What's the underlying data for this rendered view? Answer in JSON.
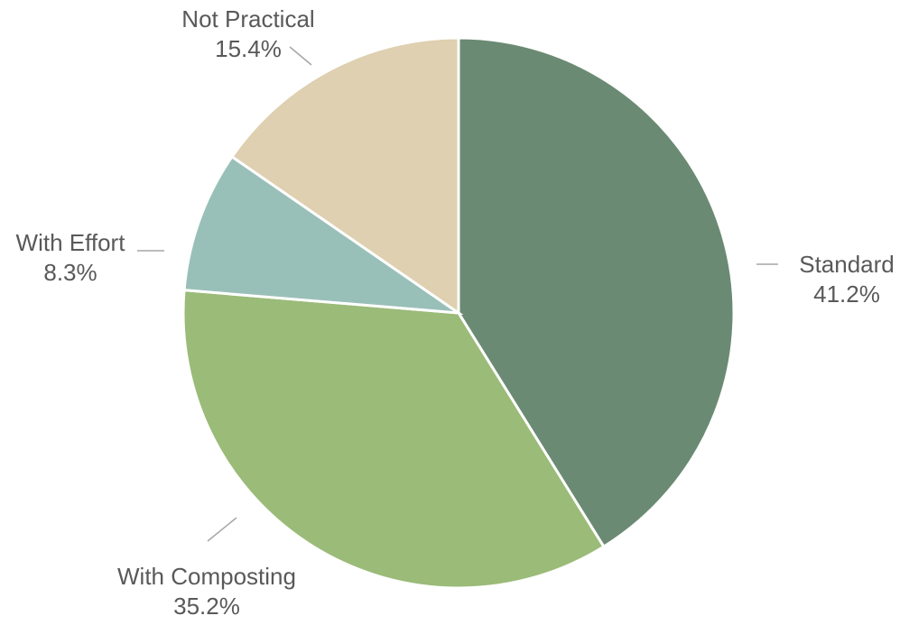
{
  "chart_data": {
    "type": "pie",
    "start_angle_deg": 0,
    "direction": "clockwise",
    "legend": "none",
    "slices": [
      {
        "name": "Standard",
        "value": 41.2,
        "value_label": "41.2%",
        "color": "#6b8a73"
      },
      {
        "name": "With Composting",
        "value": 35.2,
        "value_label": "35.2%",
        "color": "#9bbb79"
      },
      {
        "name": "With Effort",
        "value": 8.3,
        "value_label": "8.3%",
        "color": "#99c0b8"
      },
      {
        "name": "Not Practical",
        "value": 15.4,
        "value_label": "15.4%",
        "color": "#ded0b0"
      }
    ]
  }
}
